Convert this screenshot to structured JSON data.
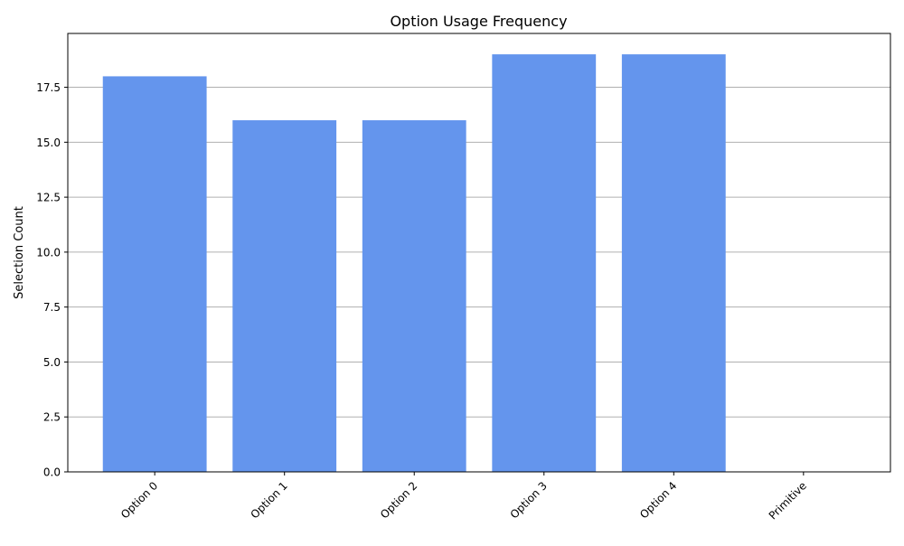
{
  "chart_data": {
    "type": "bar",
    "title": "Option Usage Frequency",
    "xlabel": "",
    "ylabel": "Selection Count",
    "categories": [
      "Option 0",
      "Option 1",
      "Option 2",
      "Option 3",
      "Option 4",
      "Primitive"
    ],
    "values": [
      18,
      16,
      16,
      19,
      19,
      0
    ],
    "ylim": [
      0,
      19.95
    ],
    "yticks": [
      0.0,
      2.5,
      5.0,
      7.5,
      10.0,
      12.5,
      15.0,
      17.5
    ],
    "ytick_labels": [
      "0.0",
      "2.5",
      "5.0",
      "7.5",
      "10.0",
      "12.5",
      "15.0",
      "17.5"
    ],
    "grid": "y-axis only",
    "x_tick_rotation_deg": 45,
    "bar_color": "#6495ED",
    "grid_color": "#b0b0b0"
  }
}
